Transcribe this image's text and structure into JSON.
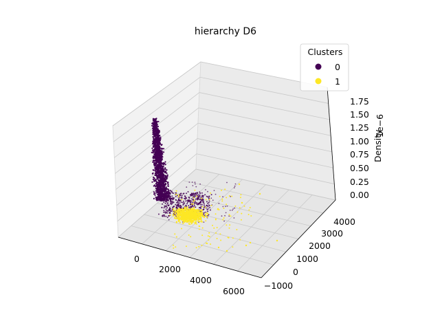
{
  "chart_data": {
    "type": "scatter",
    "title": "hierarchy D6",
    "zlabel": "Density",
    "zlabel_offset": "1e−6",
    "xlabel": "",
    "ylabel": "",
    "x_ticks": [
      "0",
      "2000",
      "4000",
      "6000"
    ],
    "y_ticks": [
      "−1000",
      "0",
      "1000",
      "2000",
      "3000",
      "4000"
    ],
    "z_ticks": [
      "0.00",
      "0.25",
      "0.50",
      "0.75",
      "1.00",
      "1.25",
      "1.50",
      "1.75"
    ],
    "xlim": [
      -1500,
      7000
    ],
    "ylim": [
      -1700,
      4500
    ],
    "zlim": [
      -0.1,
      1.9
    ],
    "projection": "3d",
    "grid": true,
    "legend": {
      "title": "Clusters",
      "placement": "top-right",
      "entries": [
        {
          "label": "0",
          "color": "#440154"
        },
        {
          "label": "1",
          "color": "#fde725"
        }
      ]
    },
    "series": [
      {
        "name": "0",
        "color": "#440154",
        "approx_points": [
          {
            "x": -500,
            "y": 3400,
            "z": 1.78
          },
          {
            "x": -400,
            "y": 3000,
            "z": 1.2
          },
          {
            "x": -200,
            "y": 2200,
            "z": 0.5
          },
          {
            "x": 300,
            "y": 1400,
            "z": 0.12
          },
          {
            "x": 1200,
            "y": 900,
            "z": 0.03
          }
        ]
      },
      {
        "name": "1",
        "color": "#fde725",
        "approx_points": [
          {
            "x": 1000,
            "y": 600,
            "z": 0.02
          },
          {
            "x": 2000,
            "y": 400,
            "z": 0.0
          },
          {
            "x": 3000,
            "y": 300,
            "z": 0.0
          },
          {
            "x": 5500,
            "y": 1500,
            "z": 0.0
          }
        ]
      }
    ]
  }
}
